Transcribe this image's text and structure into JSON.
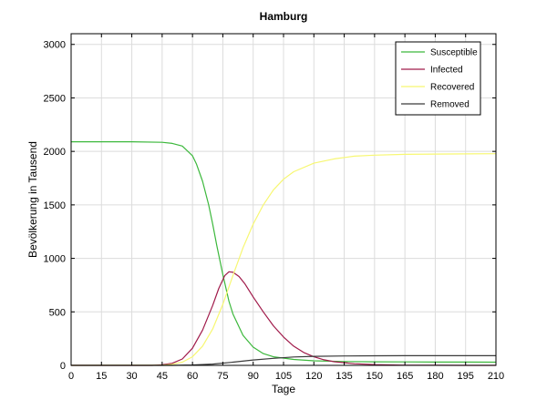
{
  "chart_data": {
    "type": "line",
    "title": "Hamburg",
    "xlabel": "Tage",
    "ylabel": "Bevölkerung in Tausend",
    "xlim": [
      0,
      210
    ],
    "ylim": [
      0,
      3100
    ],
    "xticks": [
      0,
      15,
      30,
      45,
      60,
      75,
      90,
      105,
      120,
      135,
      150,
      165,
      180,
      195,
      210
    ],
    "yticks": [
      0,
      500,
      1000,
      1500,
      2000,
      2500,
      3000
    ],
    "grid": true,
    "legend_position": "top-right",
    "series": [
      {
        "name": "Susceptible",
        "color": "#3cb83c",
        "x": [
          0,
          30,
          45,
          50,
          55,
          60,
          62,
          65,
          68,
          70,
          72,
          75,
          78,
          80,
          85,
          90,
          95,
          100,
          110,
          120,
          135,
          150,
          165,
          180,
          195,
          210
        ],
        "y": [
          2090,
          2090,
          2085,
          2075,
          2050,
          1960,
          1880,
          1720,
          1500,
          1320,
          1120,
          850,
          600,
          480,
          280,
          170,
          110,
          80,
          55,
          43,
          36,
          33,
          32,
          31,
          31,
          30
        ]
      },
      {
        "name": "Infected",
        "color": "#a01a4a",
        "x": [
          0,
          40,
          45,
          50,
          55,
          60,
          65,
          70,
          73,
          76,
          78,
          80,
          83,
          86,
          90,
          95,
          100,
          105,
          110,
          115,
          120,
          125,
          130,
          140,
          150,
          165,
          180,
          195,
          210
        ],
        "y": [
          0,
          0,
          5,
          20,
          60,
          160,
          330,
          560,
          720,
          840,
          875,
          870,
          830,
          760,
          640,
          500,
          370,
          265,
          180,
          120,
          80,
          52,
          34,
          15,
          7,
          2,
          1,
          0,
          0
        ]
      },
      {
        "name": "Recovered",
        "color": "#f7f772",
        "x": [
          0,
          45,
          50,
          55,
          60,
          65,
          70,
          75,
          80,
          85,
          90,
          95,
          100,
          105,
          110,
          120,
          130,
          140,
          150,
          165,
          180,
          195,
          210
        ],
        "y": [
          0,
          2,
          10,
          30,
          80,
          180,
          340,
          570,
          840,
          1100,
          1320,
          1500,
          1640,
          1740,
          1810,
          1890,
          1930,
          1955,
          1965,
          1972,
          1975,
          1977,
          1978
        ]
      },
      {
        "name": "Removed",
        "color": "#3a3a3a",
        "x": [
          0,
          50,
          60,
          70,
          80,
          90,
          100,
          110,
          120,
          135,
          150,
          165,
          180,
          195,
          210
        ],
        "y": [
          0,
          0,
          3,
          12,
          30,
          50,
          66,
          78,
          84,
          88,
          89,
          90,
          90,
          90,
          90
        ]
      }
    ]
  }
}
